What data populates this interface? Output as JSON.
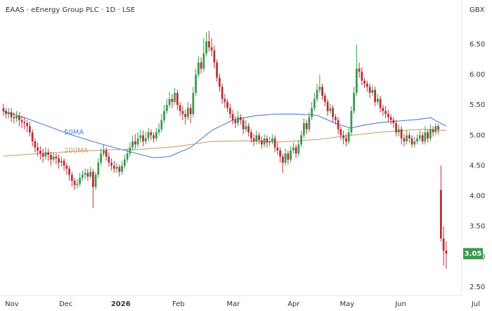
{
  "chart_data": {
    "type": "candlestick",
    "title": "EAAS · eEnergy Group PLC · 1D · LSE",
    "currency": "GBX",
    "up_color": "#3a9a50",
    "down_color": "#b83038",
    "ohlc": [
      [
        5.45,
        5.52,
        5.32,
        5.4
      ],
      [
        5.4,
        5.45,
        5.28,
        5.35
      ],
      [
        5.35,
        5.45,
        5.28,
        5.38
      ],
      [
        5.38,
        5.45,
        5.22,
        5.3
      ],
      [
        5.3,
        5.38,
        5.2,
        5.28
      ],
      [
        5.28,
        5.4,
        5.22,
        5.32
      ],
      [
        5.32,
        5.38,
        5.15,
        5.25
      ],
      [
        5.25,
        5.32,
        5.12,
        5.22
      ],
      [
        5.22,
        5.3,
        5.1,
        5.2
      ],
      [
        5.2,
        5.25,
        5.05,
        5.15
      ],
      [
        5.15,
        5.22,
        4.98,
        5.05
      ],
      [
        5.05,
        5.1,
        4.82,
        4.9
      ],
      [
        4.9,
        4.95,
        4.72,
        4.8
      ],
      [
        4.8,
        4.88,
        4.65,
        4.75
      ],
      [
        4.75,
        4.82,
        4.6,
        4.7
      ],
      [
        4.7,
        4.78,
        4.55,
        4.65
      ],
      [
        4.65,
        4.8,
        4.6,
        4.72
      ],
      [
        4.72,
        4.78,
        4.58,
        4.68
      ],
      [
        4.68,
        4.72,
        4.5,
        4.6
      ],
      [
        4.6,
        4.72,
        4.55,
        4.65
      ],
      [
        4.65,
        4.7,
        4.52,
        4.62
      ],
      [
        4.62,
        4.68,
        4.45,
        4.55
      ],
      [
        4.55,
        4.65,
        4.48,
        4.58
      ],
      [
        4.58,
        4.62,
        4.42,
        4.5
      ],
      [
        4.5,
        4.55,
        4.35,
        4.45
      ],
      [
        4.45,
        4.5,
        4.25,
        4.35
      ],
      [
        4.35,
        4.4,
        4.15,
        4.25
      ],
      [
        4.25,
        4.3,
        4.1,
        4.18
      ],
      [
        4.18,
        4.28,
        4.12,
        4.2
      ],
      [
        4.2,
        4.38,
        4.15,
        4.3
      ],
      [
        4.3,
        4.42,
        4.25,
        4.35
      ],
      [
        4.35,
        4.45,
        4.28,
        4.38
      ],
      [
        4.38,
        4.45,
        4.25,
        4.32
      ],
      [
        4.32,
        4.48,
        4.28,
        4.4
      ],
      [
        4.4,
        4.45,
        3.8,
        4.15
      ],
      [
        4.15,
        4.4,
        4.1,
        4.35
      ],
      [
        4.35,
        4.62,
        4.3,
        4.55
      ],
      [
        4.55,
        4.78,
        4.5,
        4.7
      ],
      [
        4.7,
        4.85,
        4.65,
        4.75
      ],
      [
        4.75,
        4.8,
        4.58,
        4.65
      ],
      [
        4.65,
        4.72,
        4.48,
        4.55
      ],
      [
        4.55,
        4.62,
        4.42,
        4.5
      ],
      [
        4.5,
        4.58,
        4.38,
        4.45
      ],
      [
        4.45,
        4.55,
        4.38,
        4.48
      ],
      [
        4.48,
        4.52,
        4.32,
        4.4
      ],
      [
        4.4,
        4.58,
        4.35,
        4.5
      ],
      [
        4.5,
        4.68,
        4.45,
        4.6
      ],
      [
        4.6,
        4.78,
        4.55,
        4.7
      ],
      [
        4.7,
        4.88,
        4.65,
        4.8
      ],
      [
        4.8,
        5.0,
        4.75,
        4.9
      ],
      [
        4.9,
        5.02,
        4.78,
        4.85
      ],
      [
        4.85,
        5.05,
        4.8,
        4.95
      ],
      [
        4.95,
        5.1,
        4.88,
        5.0
      ],
      [
        5.0,
        5.08,
        4.82,
        4.9
      ],
      [
        4.9,
        5.05,
        4.85,
        4.95
      ],
      [
        4.95,
        5.12,
        4.9,
        5.05
      ],
      [
        5.05,
        5.1,
        4.92,
        5.0
      ],
      [
        5.0,
        5.05,
        4.88,
        4.95
      ],
      [
        4.95,
        5.12,
        4.9,
        5.05
      ],
      [
        5.05,
        5.2,
        5.0,
        5.1
      ],
      [
        5.1,
        5.35,
        5.05,
        5.25
      ],
      [
        5.25,
        5.5,
        5.2,
        5.4
      ],
      [
        5.4,
        5.6,
        5.35,
        5.5
      ],
      [
        5.5,
        5.72,
        5.45,
        5.6
      ],
      [
        5.6,
        5.68,
        5.45,
        5.55
      ],
      [
        5.55,
        5.78,
        5.5,
        5.7
      ],
      [
        5.7,
        5.75,
        5.42,
        5.5
      ],
      [
        5.5,
        5.55,
        5.32,
        5.4
      ],
      [
        5.4,
        5.48,
        5.25,
        5.35
      ],
      [
        5.35,
        5.42,
        5.18,
        5.3
      ],
      [
        5.3,
        5.55,
        5.25,
        5.45
      ],
      [
        5.45,
        5.52,
        5.2,
        5.35
      ],
      [
        5.35,
        5.8,
        5.3,
        5.7
      ],
      [
        5.7,
        6.1,
        5.65,
        6.0
      ],
      [
        6.0,
        6.3,
        5.95,
        6.2
      ],
      [
        6.2,
        6.28,
        6.02,
        6.1
      ],
      [
        6.1,
        6.6,
        6.05,
        6.35
      ],
      [
        6.35,
        6.7,
        6.3,
        6.55
      ],
      [
        6.55,
        6.72,
        6.38,
        6.45
      ],
      [
        6.45,
        6.6,
        6.3,
        6.4
      ],
      [
        6.4,
        6.48,
        6.1,
        6.2
      ],
      [
        6.2,
        6.25,
        5.88,
        5.95
      ],
      [
        5.95,
        6.02,
        5.72,
        5.8
      ],
      [
        5.8,
        5.85,
        5.52,
        5.6
      ],
      [
        5.6,
        5.68,
        5.45,
        5.55
      ],
      [
        5.55,
        5.6,
        5.38,
        5.45
      ],
      [
        5.45,
        5.52,
        5.28,
        5.35
      ],
      [
        5.35,
        5.42,
        5.18,
        5.25
      ],
      [
        5.25,
        5.32,
        5.12,
        5.2
      ],
      [
        5.2,
        5.4,
        5.15,
        5.3
      ],
      [
        5.3,
        5.35,
        5.18,
        5.25
      ],
      [
        5.25,
        5.3,
        5.02,
        5.1
      ],
      [
        5.1,
        5.25,
        5.05,
        5.15
      ],
      [
        5.15,
        5.2,
        4.98,
        5.05
      ],
      [
        5.05,
        5.1,
        4.88,
        4.95
      ],
      [
        4.95,
        5.02,
        4.82,
        4.9
      ],
      [
        4.9,
        5.08,
        4.85,
        5.0
      ],
      [
        5.0,
        5.05,
        4.85,
        4.92
      ],
      [
        4.92,
        4.98,
        4.78,
        4.85
      ],
      [
        4.85,
        5.02,
        4.8,
        4.95
      ],
      [
        4.95,
        5.0,
        4.8,
        4.88
      ],
      [
        4.88,
        4.98,
        4.82,
        4.9
      ],
      [
        4.9,
        5.02,
        4.85,
        4.95
      ],
      [
        4.95,
        5.0,
        4.72,
        4.8
      ],
      [
        4.8,
        4.88,
        4.68,
        4.75
      ],
      [
        4.75,
        4.8,
        4.55,
        4.65
      ],
      [
        4.65,
        4.7,
        4.38,
        4.55
      ],
      [
        4.55,
        4.78,
        4.5,
        4.7
      ],
      [
        4.7,
        4.75,
        4.52,
        4.6
      ],
      [
        4.6,
        4.82,
        4.55,
        4.75
      ],
      [
        4.75,
        4.88,
        4.7,
        4.8
      ],
      [
        4.8,
        4.85,
        4.62,
        4.7
      ],
      [
        4.7,
        4.92,
        4.65,
        4.85
      ],
      [
        4.85,
        5.08,
        4.8,
        5.0
      ],
      [
        5.0,
        5.28,
        4.95,
        5.2
      ],
      [
        5.2,
        5.25,
        5.02,
        5.1
      ],
      [
        5.1,
        5.38,
        5.05,
        5.3
      ],
      [
        5.3,
        5.55,
        5.25,
        5.45
      ],
      [
        5.45,
        5.7,
        5.4,
        5.6
      ],
      [
        5.6,
        5.85,
        5.55,
        5.75
      ],
      [
        5.75,
        6.0,
        5.7,
        5.8
      ],
      [
        5.8,
        5.85,
        5.58,
        5.65
      ],
      [
        5.65,
        5.7,
        5.48,
        5.55
      ],
      [
        5.55,
        5.6,
        5.32,
        5.4
      ],
      [
        5.4,
        5.52,
        5.35,
        5.45
      ],
      [
        5.45,
        5.5,
        5.22,
        5.3
      ],
      [
        5.3,
        5.35,
        5.18,
        5.25
      ],
      [
        5.25,
        5.3,
        5.02,
        5.1
      ],
      [
        5.1,
        5.15,
        4.92,
        5.0
      ],
      [
        5.0,
        5.08,
        4.85,
        4.95
      ],
      [
        4.95,
        5.02,
        4.82,
        4.9
      ],
      [
        4.9,
        5.12,
        4.85,
        5.05
      ],
      [
        5.05,
        5.48,
        5.0,
        5.4
      ],
      [
        5.4,
        5.8,
        5.35,
        5.7
      ],
      [
        5.7,
        6.5,
        5.65,
        6.1
      ],
      [
        6.1,
        6.2,
        5.95,
        6.05
      ],
      [
        6.05,
        6.12,
        5.82,
        5.9
      ],
      [
        5.9,
        5.95,
        5.78,
        5.85
      ],
      [
        5.85,
        5.9,
        5.72,
        5.8
      ],
      [
        5.8,
        5.85,
        5.62,
        5.7
      ],
      [
        5.7,
        5.82,
        5.65,
        5.75
      ],
      [
        5.75,
        5.8,
        5.48,
        5.55
      ],
      [
        5.55,
        5.68,
        5.5,
        5.6
      ],
      [
        5.6,
        5.65,
        5.38,
        5.45
      ],
      [
        5.45,
        5.5,
        5.32,
        5.4
      ],
      [
        5.4,
        5.48,
        5.28,
        5.35
      ],
      [
        5.35,
        5.42,
        5.22,
        5.3
      ],
      [
        5.3,
        5.35,
        5.18,
        5.25
      ],
      [
        5.25,
        5.3,
        5.12,
        5.2
      ],
      [
        5.2,
        5.25,
        4.98,
        5.05
      ],
      [
        5.05,
        5.18,
        4.98,
        5.1
      ],
      [
        5.1,
        5.15,
        4.85,
        4.95
      ],
      [
        4.95,
        5.02,
        4.82,
        4.9
      ],
      [
        4.9,
        5.08,
        4.85,
        5.0
      ],
      [
        5.0,
        5.05,
        4.88,
        4.95
      ],
      [
        4.95,
        5.0,
        4.8,
        4.85
      ],
      [
        4.85,
        4.98,
        4.8,
        4.9
      ],
      [
        4.9,
        5.02,
        4.85,
        4.95
      ],
      [
        4.95,
        5.08,
        4.9,
        5.0
      ],
      [
        5.0,
        5.05,
        4.85,
        4.9
      ],
      [
        4.9,
        5.15,
        4.85,
        5.05
      ],
      [
        5.05,
        5.1,
        4.88,
        4.95
      ],
      [
        4.95,
        5.18,
        4.9,
        5.1
      ],
      [
        5.1,
        5.15,
        4.98,
        5.05
      ],
      [
        5.05,
        5.2,
        5.0,
        5.15
      ],
      [
        5.15,
        5.18,
        5.02,
        5.1
      ],
      [
        4.1,
        4.5,
        3.25,
        3.3
      ],
      [
        3.3,
        3.5,
        2.85,
        3.1
      ],
      [
        3.1,
        3.25,
        2.8,
        3.05
      ]
    ],
    "series": [
      {
        "name": "50MA",
        "color": "#4a7fd6",
        "x": [
          0,
          10,
          25,
          36,
          47,
          57,
          63,
          71,
          79,
          87,
          95,
          103,
          111,
          119,
          127,
          132,
          137,
          143,
          151,
          157,
          162,
          168
        ],
        "values": [
          5.4,
          5.26,
          5.02,
          4.87,
          4.74,
          4.63,
          4.65,
          4.8,
          5.08,
          5.25,
          5.32,
          5.35,
          5.35,
          5.33,
          5.18,
          5.12,
          5.17,
          5.21,
          5.24,
          5.26,
          5.29,
          5.15
        ]
      },
      {
        "name": "200MA",
        "color": "#c9a36a",
        "x": [
          0,
          25,
          39,
          52,
          65,
          79,
          92,
          105,
          119,
          132,
          145,
          159,
          168
        ],
        "values": [
          4.66,
          4.73,
          4.76,
          4.77,
          4.81,
          4.9,
          4.91,
          4.89,
          4.93,
          5.0,
          5.06,
          5.1,
          5.08
        ]
      }
    ],
    "xlim": [
      -1.3,
      173.9
    ],
    "xticks": [
      {
        "value": 3.2,
        "label": "Nov"
      },
      {
        "value": 23.7,
        "label": "Dec"
      },
      {
        "value": 44.5,
        "label": "2026"
      },
      {
        "value": 66.4,
        "label": "Feb"
      },
      {
        "value": 87.2,
        "label": "Mar"
      },
      {
        "value": 110.1,
        "label": "Apr"
      },
      {
        "value": 130.4,
        "label": "May"
      },
      {
        "value": 150.7,
        "label": "Jun"
      },
      {
        "value": 179.2,
        "label": "Jul"
      }
    ],
    "ylim": [
      2.36,
      7.23
    ],
    "yticks": [
      {
        "value": 2.5,
        "label": "2.50"
      },
      {
        "value": 3.0,
        "label": "3.00"
      },
      {
        "value": 3.5,
        "label": "3.50"
      },
      {
        "value": 4.0,
        "label": "4.00"
      },
      {
        "value": 4.5,
        "label": "4.50"
      },
      {
        "value": 5.0,
        "label": "5.00"
      },
      {
        "value": 5.5,
        "label": "5.50"
      },
      {
        "value": 6.0,
        "label": "6.00"
      },
      {
        "value": 6.5,
        "label": "6.50"
      }
    ]
  }
}
